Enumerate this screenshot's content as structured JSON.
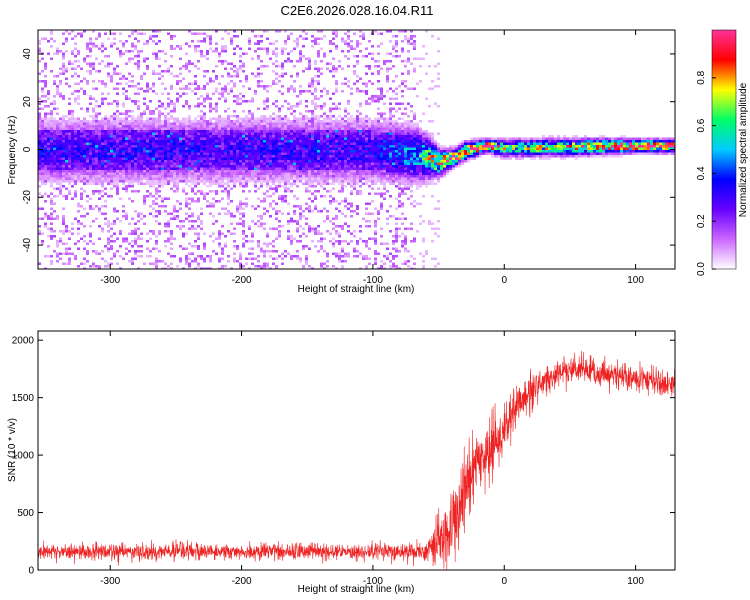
{
  "title": "C2E6.2026.028.16.04.R11",
  "colors": {
    "background": "#ffffff",
    "axis": "#000000",
    "snr_line": "#ee2222"
  },
  "chart_data": [
    {
      "type": "heatmap",
      "title": "",
      "xlabel": "Height of straight line (km)",
      "ylabel": "Frequency (Hz)",
      "xlim": [
        -355,
        130
      ],
      "ylim": [
        -50,
        50
      ],
      "x_ticks": [
        -300,
        -200,
        -100,
        0,
        100
      ],
      "x_tick_labels": [
        "-300",
        "-200",
        "-100",
        "0",
        "100"
      ],
      "y_ticks": [
        -40,
        -20,
        0,
        20,
        40
      ],
      "y_tick_labels": [
        "-40",
        "-20",
        "0",
        "20",
        "40"
      ],
      "colorbar": {
        "label": "Normalized spectral amplitude",
        "range": [
          0,
          1
        ],
        "ticks": [
          0,
          0.2,
          0.4,
          0.6,
          0.8
        ],
        "tick_labels": [
          "0.0",
          "0.2",
          "0.4",
          "0.6",
          "0.8"
        ],
        "colormap": [
          "#ffffff",
          "#cc66ff",
          "#6600ff",
          "#0000ff",
          "#00ccff",
          "#00ff66",
          "#ffff00",
          "#ff0000",
          "#ff3399"
        ]
      },
      "description_points": {
        "noise_region_end_km": -68,
        "center_track": [
          {
            "x": -355,
            "f": 0,
            "spread": 7,
            "amp": 0.3
          },
          {
            "x": -100,
            "f": 0,
            "spread": 7,
            "amp": 0.3
          },
          {
            "x": -65,
            "f": -2,
            "spread": 6,
            "amp": 0.5
          },
          {
            "x": -50,
            "f": -5,
            "spread": 3,
            "amp": 0.8
          },
          {
            "x": -40,
            "f": -3,
            "spread": 2,
            "amp": 0.9
          },
          {
            "x": -30,
            "f": 0,
            "spread": 2,
            "amp": 0.9
          },
          {
            "x": -15,
            "f": 2,
            "spread": 1.5,
            "amp": 0.9
          },
          {
            "x": 0,
            "f": 1,
            "spread": 2,
            "amp": 0.6
          },
          {
            "x": 50,
            "f": 1.5,
            "spread": 2,
            "amp": 0.7
          },
          {
            "x": 100,
            "f": 2,
            "spread": 1.5,
            "amp": 0.95
          },
          {
            "x": 130,
            "f": 2,
            "spread": 1.5,
            "amp": 0.9
          }
        ]
      }
    },
    {
      "type": "line",
      "title": "",
      "xlabel": "Height of straight line (km)",
      "ylabel": "SNR (10 * v/v)",
      "xlim": [
        -355,
        130
      ],
      "ylim": [
        0,
        2080
      ],
      "x_ticks": [
        -300,
        -200,
        -100,
        0,
        100
      ],
      "x_tick_labels": [
        "-300",
        "-200",
        "-100",
        "0",
        "100"
      ],
      "y_ticks": [
        0,
        500,
        1000,
        1500,
        2000
      ],
      "y_tick_labels": [
        "0",
        "500",
        "1000",
        "1500",
        "2000"
      ],
      "series": [
        {
          "name": "SNR",
          "color": "#ee2222",
          "envelope": [
            {
              "x": -355,
              "mean": 160,
              "noise": 80
            },
            {
              "x": -60,
              "mean": 160,
              "noise": 80
            },
            {
              "x": -50,
              "mean": 250,
              "noise": 250
            },
            {
              "x": -40,
              "mean": 350,
              "noise": 350
            },
            {
              "x": -30,
              "mean": 700,
              "noise": 400
            },
            {
              "x": -20,
              "mean": 950,
              "noise": 350
            },
            {
              "x": -10,
              "mean": 1050,
              "noise": 300
            },
            {
              "x": 0,
              "mean": 1200,
              "noise": 250
            },
            {
              "x": 10,
              "mean": 1450,
              "noise": 200
            },
            {
              "x": 25,
              "mean": 1600,
              "noise": 160
            },
            {
              "x": 50,
              "mean": 1750,
              "noise": 140
            },
            {
              "x": 80,
              "mean": 1700,
              "noise": 130
            },
            {
              "x": 110,
              "mean": 1650,
              "noise": 130
            },
            {
              "x": 130,
              "mean": 1630,
              "noise": 130
            }
          ]
        }
      ]
    }
  ]
}
